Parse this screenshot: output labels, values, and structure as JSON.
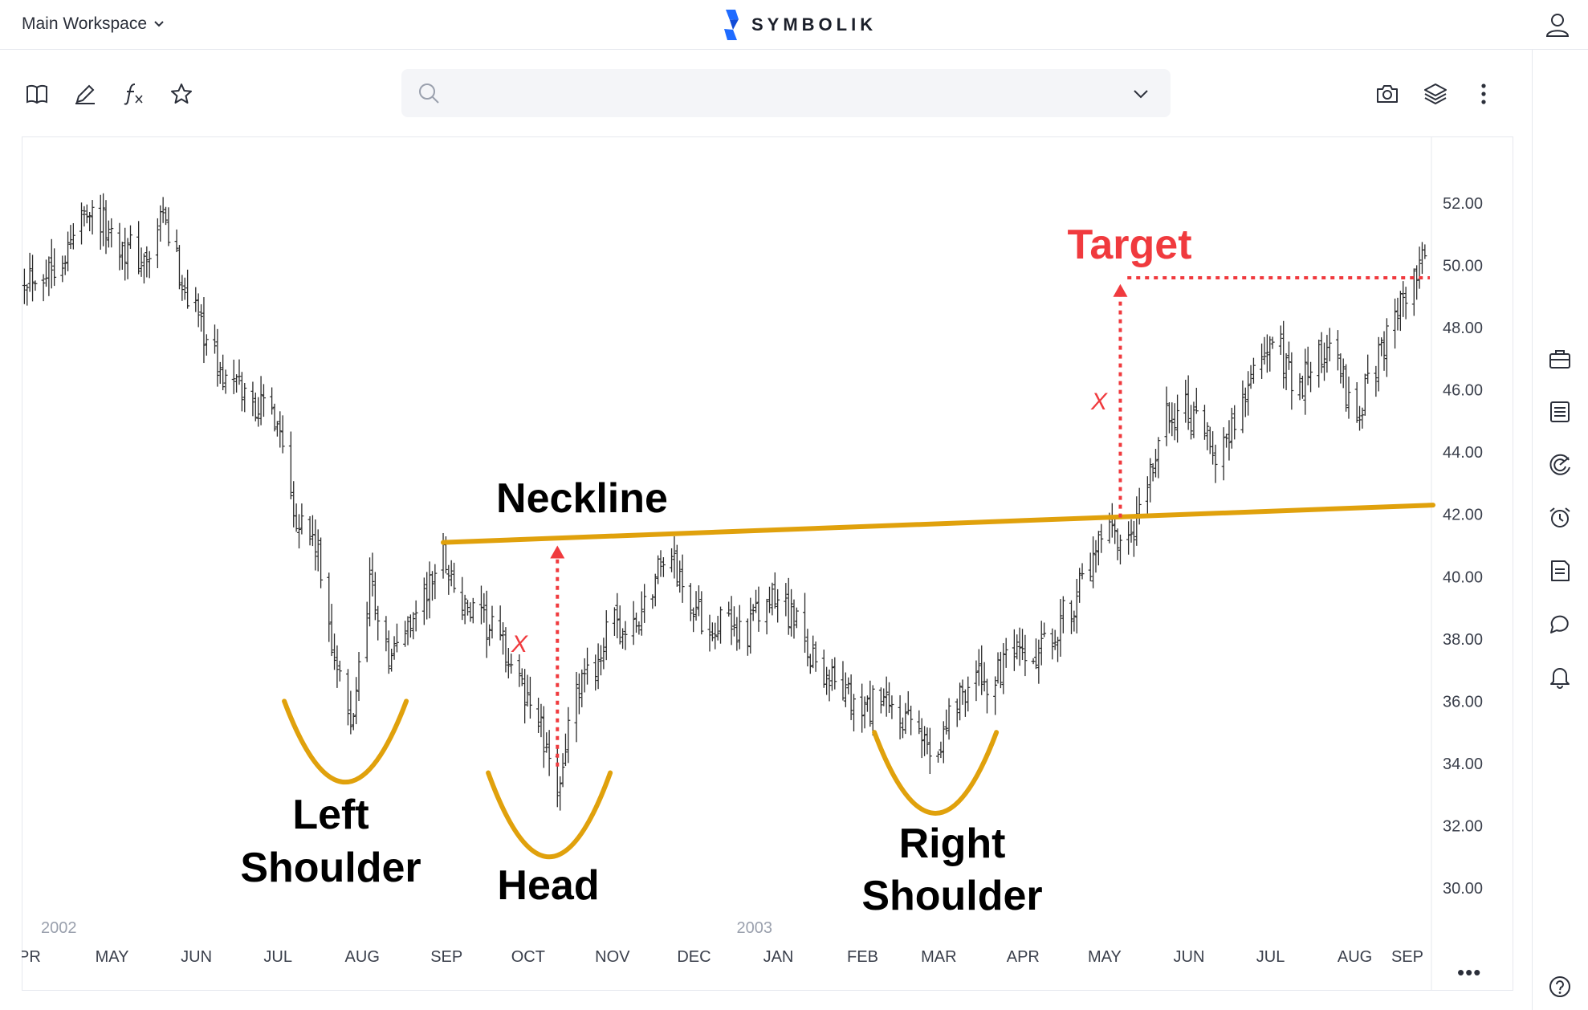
{
  "header": {
    "workspace_label": "Main Workspace",
    "brand_name": "SYMBOLIK",
    "icons": {
      "workspace_dropdown": "chevron-down-icon",
      "brand": "symbolik-logo",
      "user": "user-icon"
    }
  },
  "toolbar": {
    "left_icons": [
      "book-icon",
      "pencil-icon",
      "function-icon",
      "star-icon"
    ],
    "search": {
      "value": "",
      "placeholder": ""
    },
    "right_icons": [
      "camera-icon",
      "layers-icon",
      "more-vertical-icon"
    ]
  },
  "sidebar": {
    "icons": [
      "briefcase-icon",
      "list-icon",
      "gauge-icon",
      "alarm-icon",
      "document-icon",
      "chat-icon",
      "bell-icon",
      "help-icon"
    ]
  },
  "chart_data": {
    "type": "ohlc",
    "title": "",
    "price_axis": {
      "ticks": [
        "52.00",
        "50.00",
        "48.00",
        "46.00",
        "44.00",
        "42.00",
        "40.00",
        "38.00",
        "36.00",
        "34.00",
        "32.00",
        "30.00"
      ],
      "range": [
        29.0,
        53.3
      ]
    },
    "time_axis": {
      "labels": [
        "PR",
        "MAY",
        "JUN",
        "JUL",
        "AUG",
        "SEP",
        "OCT",
        "NOV",
        "DEC",
        "JAN",
        "FEB",
        "MAR",
        "APR",
        "MAY",
        "JUN",
        "JUL",
        "AUG",
        "SEP"
      ],
      "years": [
        "2002",
        "2003"
      ],
      "more_label": "•••"
    },
    "close_path": [
      [
        "2002-04-22",
        49.8
      ],
      [
        "2002-05-01",
        50.5
      ],
      [
        "2002-05-08",
        52.0
      ],
      [
        "2002-05-15",
        51.2
      ],
      [
        "2002-05-22",
        50.6
      ],
      [
        "2002-05-30",
        50.0
      ],
      [
        "2002-06-05",
        51.5
      ],
      [
        "2002-06-12",
        49.5
      ],
      [
        "2002-06-19",
        48.2
      ],
      [
        "2002-06-26",
        46.5
      ],
      [
        "2002-07-03",
        46.0
      ],
      [
        "2002-07-10",
        45.5
      ],
      [
        "2002-07-17",
        45.2
      ],
      [
        "2002-07-24",
        42.0
      ],
      [
        "2002-07-31",
        41.0
      ],
      [
        "2002-08-07",
        37.5
      ],
      [
        "2002-08-13",
        35.0
      ],
      [
        "2002-08-20",
        40.0
      ],
      [
        "2002-08-27",
        37.2
      ],
      [
        "2002-09-03",
        38.5
      ],
      [
        "2002-09-10",
        39.5
      ],
      [
        "2002-09-16",
        40.8
      ],
      [
        "2002-09-23",
        39.0
      ],
      [
        "2002-09-30",
        38.5
      ],
      [
        "2002-10-07",
        38.0
      ],
      [
        "2002-10-14",
        36.5
      ],
      [
        "2002-10-21",
        35.5
      ],
      [
        "2002-10-27",
        32.8
      ],
      [
        "2002-11-03",
        36.0
      ],
      [
        "2002-11-10",
        37.0
      ],
      [
        "2002-11-17",
        38.5
      ],
      [
        "2002-11-24",
        38.0
      ],
      [
        "2002-12-01",
        39.5
      ],
      [
        "2002-12-07",
        41.0
      ],
      [
        "2002-12-14",
        39.5
      ],
      [
        "2002-12-21",
        38.5
      ],
      [
        "2002-12-28",
        38.5
      ],
      [
        "2003-01-05",
        38.2
      ],
      [
        "2003-01-12",
        39.0
      ],
      [
        "2003-01-19",
        39.3
      ],
      [
        "2003-01-26",
        38.0
      ],
      [
        "2003-02-02",
        37.0
      ],
      [
        "2003-02-09",
        36.5
      ],
      [
        "2003-02-16",
        35.5
      ],
      [
        "2003-02-23",
        36.0
      ],
      [
        "2003-03-02",
        35.5
      ],
      [
        "2003-03-09",
        35.0
      ],
      [
        "2003-03-16",
        34.4
      ],
      [
        "2003-03-23",
        36.0
      ],
      [
        "2003-03-30",
        36.8
      ],
      [
        "2003-04-06",
        36.5
      ],
      [
        "2003-04-13",
        37.5
      ],
      [
        "2003-04-20",
        37.0
      ],
      [
        "2003-04-27",
        38.0
      ],
      [
        "2003-05-04",
        39.0
      ],
      [
        "2003-05-11",
        40.0
      ],
      [
        "2003-05-18",
        41.5
      ],
      [
        "2003-05-25",
        40.5
      ],
      [
        "2003-06-01",
        42.5
      ],
      [
        "2003-06-08",
        45.0
      ],
      [
        "2003-06-15",
        45.5
      ],
      [
        "2003-06-22",
        44.5
      ],
      [
        "2003-06-29",
        44.0
      ],
      [
        "2003-07-06",
        45.5
      ],
      [
        "2003-07-13",
        47.0
      ],
      [
        "2003-07-20",
        47.5
      ],
      [
        "2003-07-27",
        46.0
      ],
      [
        "2003-08-03",
        47.0
      ],
      [
        "2003-08-10",
        47.3
      ],
      [
        "2003-08-17",
        45.0
      ],
      [
        "2003-08-24",
        46.5
      ],
      [
        "2003-08-31",
        48.5
      ],
      [
        "2003-09-07",
        49.0
      ],
      [
        "2003-09-13",
        51.0
      ]
    ],
    "neckline": {
      "start": [
        "2002-09-16",
        41.1
      ],
      "end": [
        "2003-09-15",
        42.3
      ]
    },
    "target_level": {
      "value": 49.6,
      "from": "2003-05-25"
    },
    "measure_arrows": [
      {
        "at": "2002-10-28",
        "from": 33.9,
        "to": 41.0
      },
      {
        "at": "2003-05-23",
        "from": 41.9,
        "to": 49.4
      }
    ],
    "shoulder_arcs": [
      {
        "center": "2002-08-11",
        "top": 36.0,
        "bottom": 33.4
      },
      {
        "center": "2002-10-25",
        "top": 33.7,
        "bottom": 31.0
      },
      {
        "center": "2003-03-16",
        "top": 35.0,
        "bottom": 32.4
      }
    ],
    "annotations": {
      "neckline": "Neckline",
      "target": "Target",
      "left_shoulder_1": "Left",
      "left_shoulder_2": "Shoulder",
      "head": "Head",
      "right_shoulder_1": "Right",
      "right_shoulder_2": "Shoulder",
      "x1": "X",
      "x2": "X"
    },
    "colors": {
      "bars": "#2a2a2a",
      "neckline": "#e0a10c",
      "arcs": "#e0a10c",
      "measure": "#f03a3e",
      "target_text": "#f03a3e",
      "labels": "#000000"
    }
  }
}
